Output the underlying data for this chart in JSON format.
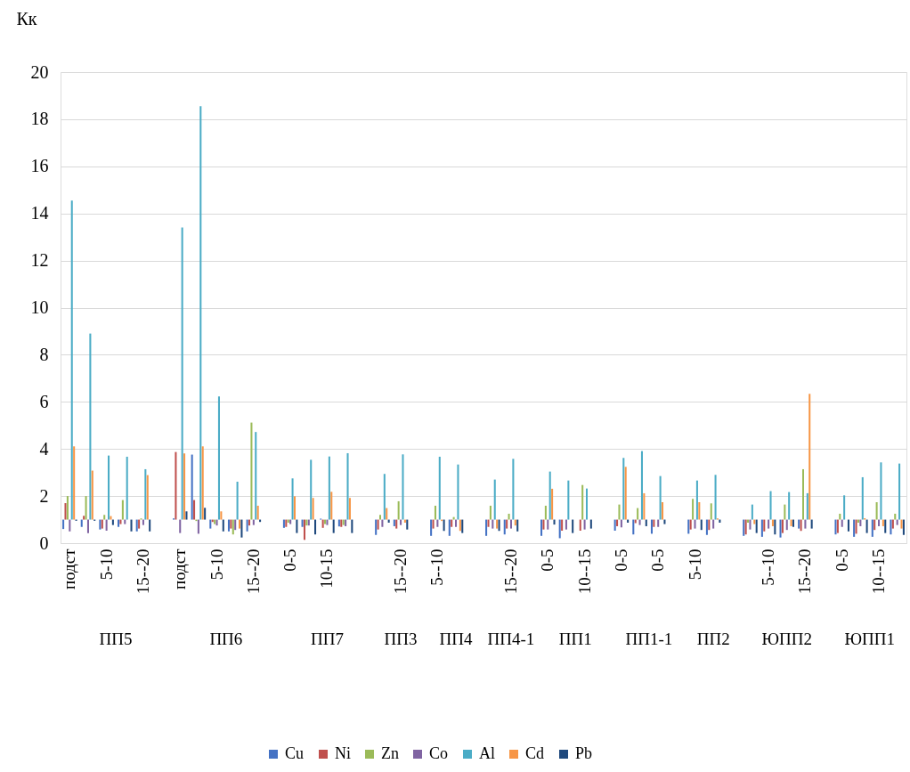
{
  "chart_data": {
    "type": "bar",
    "ylabel": "Кк",
    "categories": [
      "подст",
      null,
      "5-10",
      null,
      "15--20",
      null,
      "подст",
      null,
      "5-10",
      null,
      "15--20",
      null,
      "0-5",
      null,
      "10-15",
      null,
      null,
      null,
      "15--20",
      null,
      "5--10",
      null,
      null,
      null,
      "15--20",
      null,
      "0-5",
      null,
      "10--15",
      null,
      "0-5",
      null,
      "0-5",
      null,
      "5-10",
      null,
      null,
      null,
      "5--10",
      null,
      "15--20",
      null,
      "0-5",
      null,
      "10--15",
      null
    ],
    "annotations": [
      "ПП5",
      "ПП6",
      "ПП7",
      "ПП3",
      "ПП4",
      "ПП4-1",
      "ПП1",
      "ПП1-1",
      "ПП2",
      "ЮПП2",
      "ЮПП1"
    ],
    "series": [
      {
        "name": "Cu",
        "color": "#4472c4",
        "base": [
          1,
          1,
          1,
          1,
          1,
          null,
          1,
          1,
          1,
          1,
          1,
          null,
          1,
          1,
          1,
          1,
          null,
          1,
          1,
          null,
          1,
          1,
          null,
          1,
          1,
          null,
          1,
          1,
          null,
          null,
          1,
          1,
          1,
          null,
          1,
          1,
          null,
          1,
          1,
          1,
          1,
          null,
          1,
          1,
          1,
          1
        ],
        "values": [
          -0.4,
          -0.31,
          -0.42,
          -0.31,
          -0.5,
          null,
          0.05,
          2.76,
          -0.38,
          -0.5,
          -0.5,
          null,
          -0.35,
          -0.31,
          0.04,
          -0.29,
          null,
          -0.65,
          -0.28,
          null,
          -0.69,
          -0.69,
          null,
          -0.69,
          -0.63,
          null,
          -0.69,
          -0.79,
          null,
          null,
          -0.47,
          -0.63,
          -0.6,
          null,
          -0.6,
          -0.65,
          null,
          -0.69,
          -0.73,
          -0.76,
          -0.38,
          null,
          -0.63,
          -0.73,
          -0.73,
          -0.63
        ]
      },
      {
        "name": "Ni",
        "color": "#c0504d",
        "base": [
          1,
          1,
          1,
          1,
          1,
          null,
          1,
          1,
          1,
          1,
          1,
          null,
          1,
          1,
          1,
          1,
          null,
          1,
          1,
          null,
          1,
          1,
          null,
          1,
          1,
          null,
          1,
          1,
          1,
          null,
          1,
          1,
          1,
          null,
          1,
          1,
          null,
          1,
          1,
          1,
          1,
          null,
          1,
          1,
          1,
          1
        ],
        "values": [
          0.7,
          0.16,
          -0.38,
          -0.19,
          -0.38,
          null,
          2.87,
          0.83,
          -0.1,
          -0.38,
          -0.25,
          null,
          -0.31,
          -0.86,
          -0.35,
          -0.31,
          null,
          -0.42,
          -0.38,
          null,
          -0.38,
          -0.31,
          null,
          -0.31,
          -0.38,
          null,
          -0.42,
          -0.47,
          -0.47,
          null,
          -0.28,
          -0.15,
          -0.31,
          null,
          -0.42,
          -0.44,
          null,
          -0.63,
          -0.5,
          -0.57,
          -0.48,
          null,
          -0.57,
          -0.6,
          -0.44,
          -0.38
        ]
      },
      {
        "name": "Zn",
        "color": "#9bbb59",
        "base": [
          1,
          1,
          1,
          1,
          1,
          null,
          null,
          1,
          1,
          1,
          1,
          null,
          1,
          1,
          1,
          1,
          null,
          1,
          1,
          null,
          1,
          1,
          null,
          1,
          1,
          null,
          1,
          null,
          1,
          null,
          1,
          1,
          null,
          null,
          1,
          1,
          null,
          1,
          null,
          1,
          1,
          null,
          1,
          1,
          1,
          1
        ],
        "values": [
          1.0,
          1.0,
          0.2,
          0.83,
          0.05,
          null,
          null,
          -0.06,
          -0.19,
          -0.63,
          4.12,
          null,
          -0.13,
          -0.25,
          -0.19,
          -0.23,
          null,
          0.2,
          0.78,
          null,
          0.59,
          0.11,
          null,
          0.59,
          0.25,
          null,
          0.59,
          null,
          1.47,
          null,
          0.64,
          0.49,
          null,
          null,
          0.88,
          0.69,
          null,
          -0.13,
          null,
          0.64,
          2.14,
          null,
          0.25,
          -0.13,
          0.74,
          0.25
        ]
      },
      {
        "name": "Co",
        "color": "#8064a2",
        "base": [
          1,
          1,
          1,
          1,
          1,
          null,
          1,
          1,
          1,
          1,
          1,
          null,
          1,
          1,
          1,
          1,
          null,
          1,
          1,
          null,
          1,
          1,
          null,
          1,
          1,
          null,
          1,
          1,
          1,
          null,
          1,
          1,
          1,
          null,
          1,
          1,
          null,
          1,
          1,
          1,
          1,
          null,
          1,
          1,
          1,
          1
        ],
        "values": [
          -0.5,
          -0.57,
          -0.47,
          -0.19,
          -0.23,
          null,
          -0.57,
          -0.6,
          -0.25,
          -0.44,
          -0.23,
          null,
          -0.19,
          -0.25,
          -0.23,
          -0.28,
          null,
          -0.31,
          -0.23,
          null,
          -0.31,
          -0.31,
          null,
          -0.38,
          -0.38,
          null,
          -0.42,
          -0.42,
          -0.42,
          null,
          -0.33,
          -0.23,
          -0.31,
          null,
          -0.38,
          -0.38,
          null,
          -0.42,
          -0.38,
          -0.44,
          -0.38,
          null,
          -0.31,
          -0.28,
          -0.28,
          -0.23
        ]
      },
      {
        "name": "Al",
        "color": "#4bacc6",
        "base": [
          1,
          1,
          1,
          1,
          1,
          null,
          1,
          1,
          1,
          1,
          1,
          null,
          1,
          1,
          1,
          1,
          null,
          1,
          1,
          null,
          1,
          1,
          null,
          1,
          1,
          null,
          1,
          1,
          1,
          null,
          1,
          1,
          1,
          null,
          1,
          1,
          null,
          1,
          1,
          1,
          1,
          null,
          1,
          1,
          1,
          1
        ],
        "values": [
          13.55,
          7.9,
          2.72,
          2.67,
          2.14,
          null,
          12.4,
          17.55,
          5.23,
          1.61,
          3.72,
          null,
          1.75,
          2.54,
          2.68,
          2.82,
          null,
          1.94,
          2.77,
          null,
          2.67,
          2.34,
          null,
          1.7,
          2.58,
          null,
          2.04,
          1.66,
          1.32,
          null,
          2.62,
          2.91,
          1.85,
          null,
          1.66,
          1.9,
          null,
          0.64,
          1.21,
          1.17,
          1.12,
          null,
          1.03,
          1.8,
          2.43,
          2.38
        ]
      },
      {
        "name": "Cd",
        "color": "#f79646",
        "base": [
          1,
          1,
          1,
          null,
          1,
          null,
          1,
          1,
          1,
          1,
          1,
          null,
          1,
          1,
          1,
          1,
          null,
          1,
          1,
          null,
          1,
          1,
          null,
          1,
          1,
          null,
          1,
          null,
          null,
          null,
          1,
          1,
          1,
          null,
          1,
          1,
          null,
          1,
          1,
          1,
          1,
          null,
          null,
          1,
          1,
          1
        ],
        "values": [
          3.11,
          2.08,
          0.15,
          null,
          1.89,
          null,
          2.81,
          3.11,
          0.35,
          -0.38,
          0.59,
          null,
          0.99,
          0.92,
          1.18,
          0.92,
          null,
          0.49,
          -0.13,
          null,
          -0.06,
          -0.48,
          null,
          -0.38,
          -0.25,
          null,
          1.31,
          null,
          null,
          null,
          2.24,
          1.12,
          0.74,
          null,
          0.74,
          0.05,
          null,
          -0.19,
          -0.28,
          -0.28,
          5.34,
          null,
          null,
          0.06,
          -0.28,
          -0.38
        ]
      },
      {
        "name": "Pb",
        "color": "#1f497d",
        "base": [
          1,
          1,
          1,
          1,
          1,
          null,
          1,
          1,
          1,
          1,
          1,
          null,
          1,
          1,
          1,
          1,
          null,
          1,
          1,
          null,
          1,
          1,
          null,
          1,
          1,
          null,
          1,
          1,
          1,
          null,
          1,
          1,
          1,
          null,
          1,
          1,
          null,
          1,
          1,
          1,
          1,
          null,
          1,
          1,
          1,
          1
        ],
        "values": [
          -0.05,
          -0.05,
          -0.23,
          -0.5,
          -0.5,
          null,
          0.35,
          0.5,
          -0.5,
          -0.76,
          -0.1,
          null,
          -0.57,
          -0.63,
          -0.57,
          -0.57,
          null,
          -0.13,
          -0.42,
          null,
          -0.48,
          -0.57,
          null,
          -0.48,
          -0.5,
          null,
          -0.21,
          -0.57,
          -0.38,
          null,
          -0.13,
          -0.28,
          -0.19,
          null,
          -0.44,
          -0.13,
          null,
          -0.57,
          -0.63,
          -0.31,
          -0.38,
          null,
          -0.5,
          -0.57,
          -0.57,
          -0.65
        ]
      }
    ],
    "ylim": [
      0,
      20
    ],
    "yticks": [
      0,
      2,
      4,
      6,
      8,
      10,
      12,
      14,
      16,
      18,
      20
    ],
    "grid": "y",
    "legend": "bottom"
  }
}
